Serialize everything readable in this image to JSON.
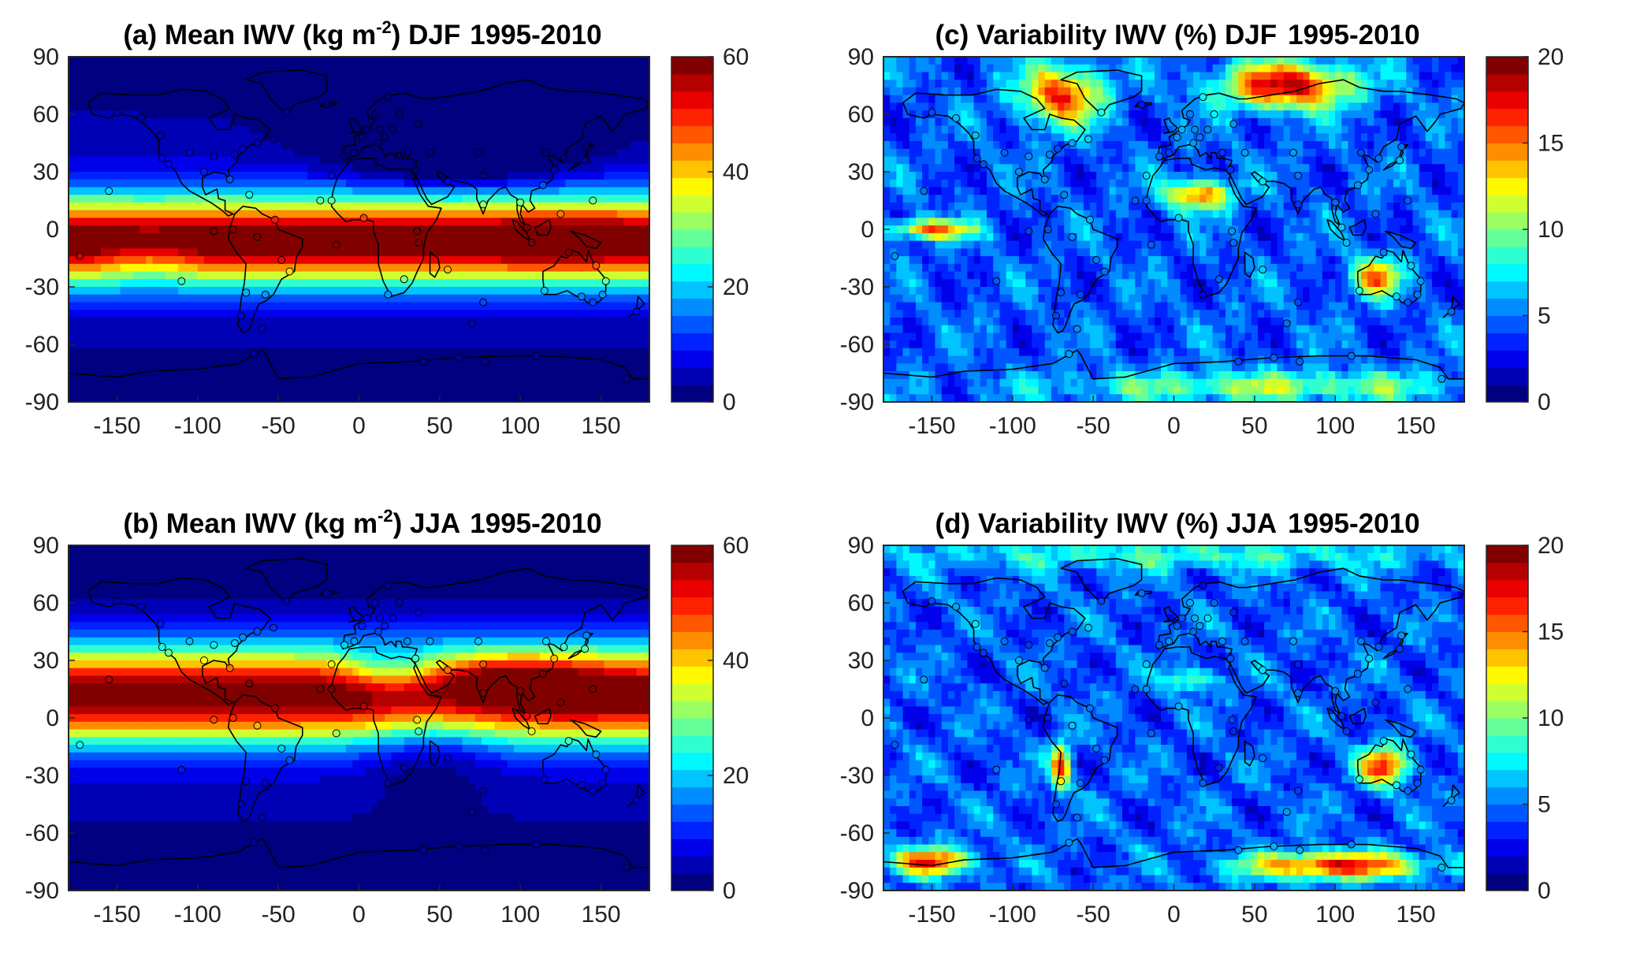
{
  "colormap": "jet",
  "panels": [
    {
      "id": "a",
      "title_prefix": "(a) Mean IWV (kg m",
      "title_sup": "-2",
      "title_suffix": ") DJF",
      "title_years": "1995-2010",
      "variable": "mean",
      "season": "DJF"
    },
    {
      "id": "b",
      "title_prefix": "(b) Mean IWV (kg m",
      "title_sup": "-2",
      "title_suffix": ") JJA",
      "title_years": "1995-2010",
      "variable": "mean",
      "season": "JJA"
    },
    {
      "id": "c",
      "title_prefix": "(c) Variability IWV (%) DJF",
      "title_sup": "",
      "title_suffix": "",
      "title_years": "1995-2010",
      "variable": "variability",
      "season": "DJF"
    },
    {
      "id": "d",
      "title_prefix": "(d) Variability IWV (%) JJA",
      "title_sup": "",
      "title_suffix": "",
      "title_years": "1995-2010",
      "variable": "variability",
      "season": "JJA"
    }
  ],
  "chart_data": [
    {
      "type": "heatmap",
      "title": "(a) Mean IWV (kg m-2) DJF 1995-2010",
      "x_ticks": [
        -150,
        -100,
        -50,
        0,
        50,
        100,
        150
      ],
      "y_ticks": [
        90,
        60,
        30,
        0,
        -30,
        -60,
        -90
      ],
      "xlim": [
        -180,
        180
      ],
      "ylim": [
        -90,
        90
      ],
      "colorbar": {
        "ticks": [
          0,
          20,
          40,
          60
        ],
        "range": [
          0,
          60
        ],
        "levels": 20,
        "colormap": "jet"
      },
      "stations_marked": true
    },
    {
      "type": "heatmap",
      "title": "(b) Mean IWV (kg m-2) JJA 1995-2010",
      "x_ticks": [
        -150,
        -100,
        -50,
        0,
        50,
        100,
        150
      ],
      "y_ticks": [
        90,
        60,
        30,
        0,
        -30,
        -60,
        -90
      ],
      "xlim": [
        -180,
        180
      ],
      "ylim": [
        -90,
        90
      ],
      "colorbar": {
        "ticks": [
          0,
          20,
          40,
          60
        ],
        "range": [
          0,
          60
        ],
        "levels": 20,
        "colormap": "jet"
      },
      "stations_marked": true
    },
    {
      "type": "heatmap",
      "title": "(c) Variability IWV (%) DJF 1995-2010",
      "x_ticks": [
        -150,
        -100,
        -50,
        0,
        50,
        100,
        150
      ],
      "y_ticks": [
        90,
        60,
        30,
        0,
        -30,
        -60,
        -90
      ],
      "xlim": [
        -180,
        180
      ],
      "ylim": [
        -90,
        90
      ],
      "colorbar": {
        "ticks": [
          0,
          5,
          10,
          15,
          20
        ],
        "range": [
          0,
          20
        ],
        "levels": 20,
        "colormap": "jet"
      },
      "stations_marked": true
    },
    {
      "type": "heatmap",
      "title": "(d) Variability IWV (%) JJA 1995-2010",
      "x_ticks": [
        -150,
        -100,
        -50,
        0,
        50,
        100,
        150
      ],
      "y_ticks": [
        90,
        60,
        30,
        0,
        -30,
        -60,
        -90
      ],
      "xlim": [
        -180,
        180
      ],
      "ylim": [
        -90,
        90
      ],
      "colorbar": {
        "ticks": [
          0,
          5,
          10,
          15,
          20
        ],
        "range": [
          0,
          20
        ],
        "levels": 20,
        "colormap": "jet"
      },
      "stations_marked": true
    }
  ]
}
